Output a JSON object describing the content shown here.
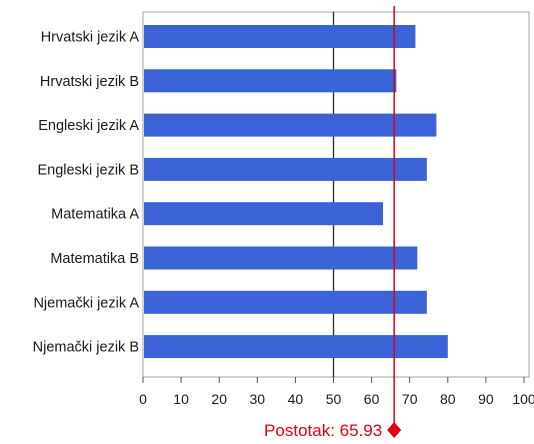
{
  "chart_data": {
    "type": "bar",
    "orientation": "horizontal",
    "categories": [
      "Hrvatski jezik A",
      "Hrvatski jezik B",
      "Engleski jezik A",
      "Engleski jezik B",
      "Matematika A",
      "Matematika B",
      "Njemački jezik A",
      "Njemački jezik B"
    ],
    "values": [
      71.5,
      66.5,
      77,
      74.5,
      63,
      72,
      74.5,
      80
    ],
    "xlim": [
      0,
      100
    ],
    "xticks": [
      0,
      10,
      20,
      30,
      40,
      50,
      60,
      70,
      80,
      90,
      100
    ],
    "grid": false,
    "bar_color": "#3a63d8",
    "midline": {
      "value": 50,
      "color": "#2b2b2b"
    },
    "reference_line": {
      "value": 65.93,
      "label": "Postotak: 65.93",
      "color": "#e0000f"
    }
  }
}
